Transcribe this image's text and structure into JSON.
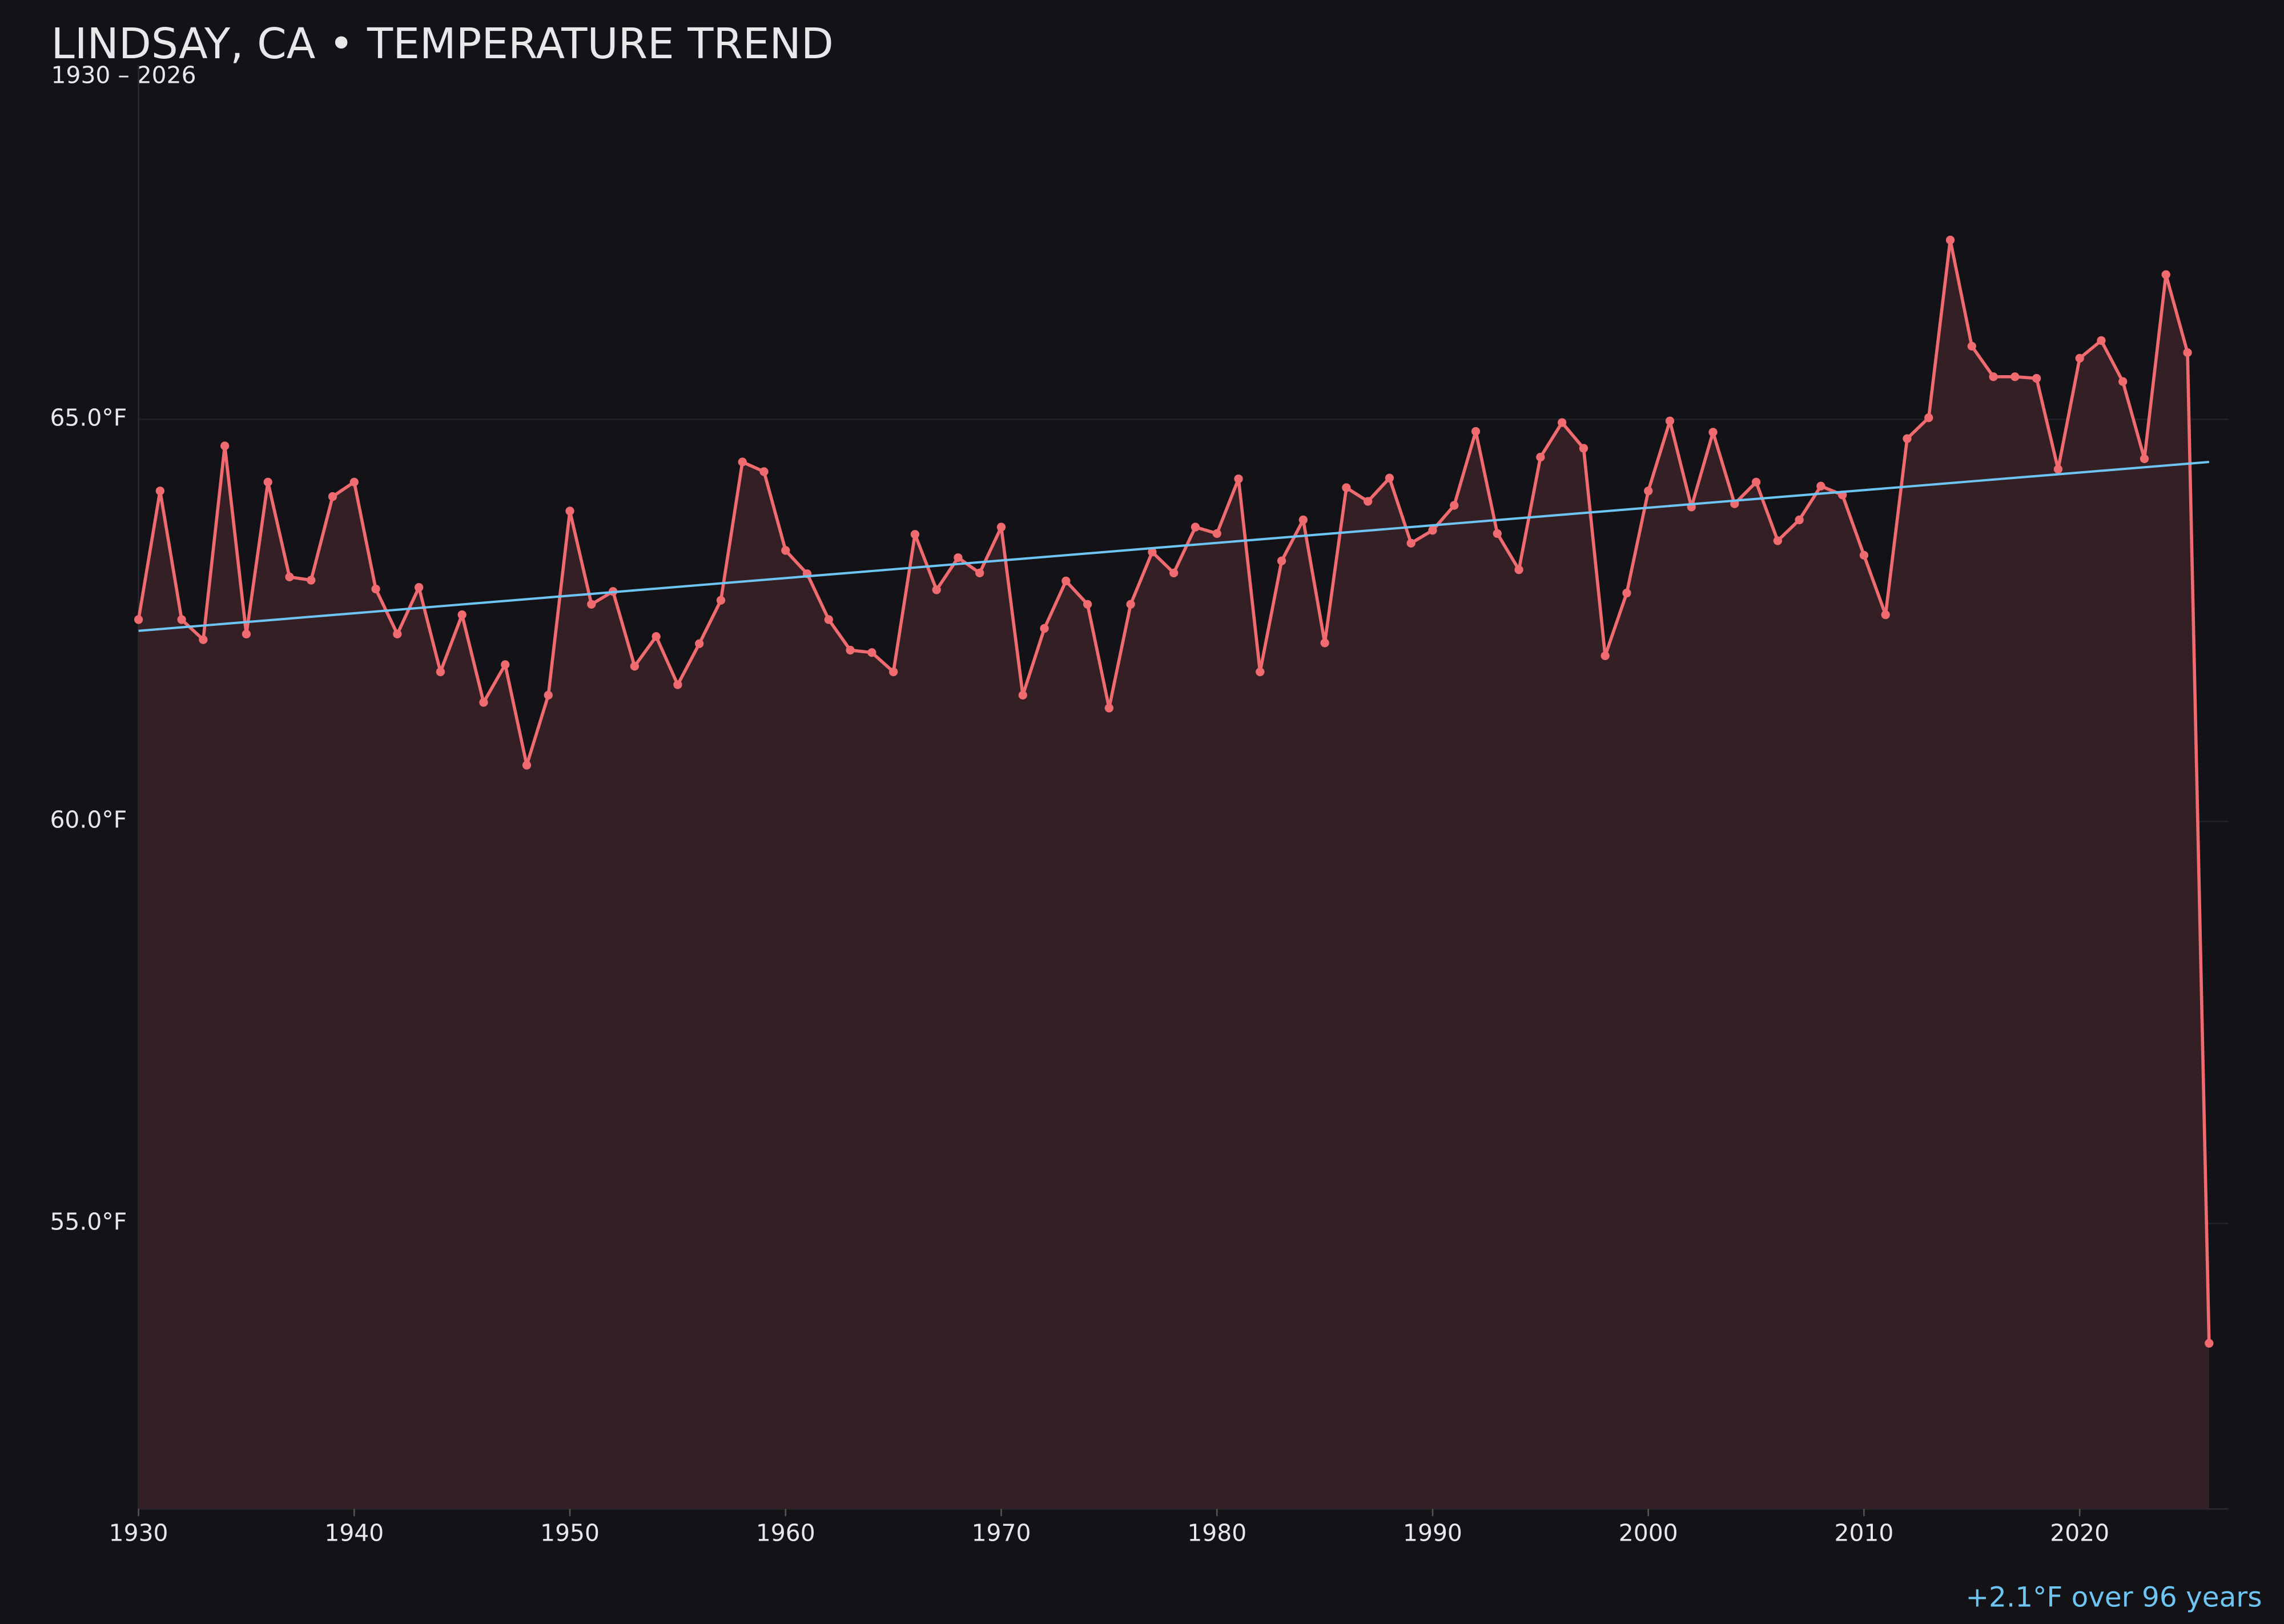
{
  "chart_data": {
    "type": "line",
    "title": "LINDSAY, CA • TEMPERATURE TREND",
    "subtitle": "1930 – 2026",
    "annotation": "+2.1°F over 96 years",
    "x": [
      1930,
      1931,
      1932,
      1933,
      1934,
      1935,
      1936,
      1937,
      1938,
      1939,
      1940,
      1941,
      1942,
      1943,
      1944,
      1945,
      1946,
      1947,
      1948,
      1949,
      1950,
      1951,
      1952,
      1953,
      1954,
      1955,
      1956,
      1957,
      1958,
      1959,
      1960,
      1961,
      1962,
      1963,
      1964,
      1965,
      1966,
      1967,
      1968,
      1969,
      1970,
      1971,
      1972,
      1973,
      1974,
      1975,
      1976,
      1977,
      1978,
      1979,
      1980,
      1981,
      1982,
      1983,
      1984,
      1985,
      1986,
      1987,
      1988,
      1989,
      1990,
      1991,
      1992,
      1993,
      1994,
      1995,
      1996,
      1997,
      1998,
      1999,
      2000,
      2001,
      2002,
      2003,
      2004,
      2005,
      2006,
      2007,
      2008,
      2009,
      2010,
      2011,
      2012,
      2013,
      2014,
      2015,
      2016,
      2017,
      2018,
      2019,
      2020,
      2021,
      2022,
      2023,
      2024,
      2025,
      2026
    ],
    "series": [
      {
        "color": "#f06b6f",
        "fill": "#341f25",
        "values": [
          62.51,
          64.11,
          62.51,
          62.26,
          64.67,
          62.33,
          64.22,
          63.04,
          63.0,
          64.04,
          64.22,
          62.89,
          62.33,
          62.91,
          61.86,
          62.57,
          61.48,
          61.95,
          60.7,
          61.57,
          63.86,
          62.7,
          62.86,
          61.93,
          62.3,
          61.7,
          62.21,
          62.75,
          64.47,
          64.35,
          63.37,
          63.08,
          62.51,
          62.13,
          62.1,
          61.86,
          63.57,
          62.88,
          63.28,
          63.09,
          63.66,
          61.57,
          62.4,
          62.99,
          62.7,
          61.41,
          62.7,
          63.35,
          63.09,
          63.66,
          63.58,
          64.26,
          61.86,
          63.24,
          63.75,
          62.22,
          64.15,
          63.98,
          64.27,
          63.46,
          63.62,
          63.93,
          64.85,
          63.58,
          63.13,
          64.53,
          64.96,
          64.64,
          62.06,
          62.84,
          64.11,
          64.98,
          63.91,
          64.84,
          63.95,
          64.22,
          63.49,
          63.75,
          64.17,
          64.06,
          63.31,
          62.57,
          64.76,
          65.02,
          67.23,
          65.91,
          65.53,
          65.53,
          65.51,
          64.38,
          65.76,
          65.98,
          65.47,
          64.51,
          66.8,
          65.83,
          53.51
        ]
      }
    ],
    "trend": {
      "color": "#6ec4f2",
      "x": [
        1930,
        2026
      ],
      "values": [
        62.37,
        64.47
      ]
    },
    "xlim": [
      1930,
      2026.9
    ],
    "ylim": [
      51.45,
      69.4
    ],
    "xticks": [
      1930,
      1940,
      1950,
      1960,
      1970,
      1980,
      1990,
      2000,
      2010,
      2020
    ],
    "yticks": [
      {
        "value": 55,
        "label": "55.0°F"
      },
      {
        "value": 60,
        "label": "60.0°F"
      },
      {
        "value": 65,
        "label": "65.0°F"
      }
    ],
    "grid": true
  }
}
